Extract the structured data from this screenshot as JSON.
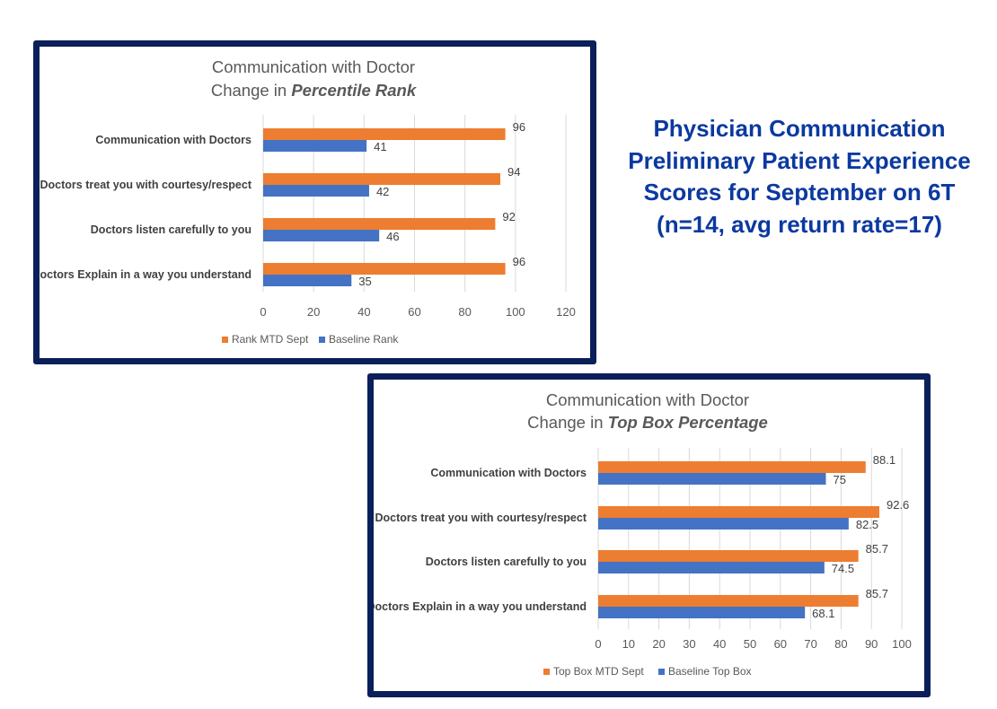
{
  "side_title": {
    "lines": [
      "Physician Communication",
      "Preliminary Patient Experience",
      "Scores for September on 6T",
      "(n=14, avg return rate=17)"
    ],
    "color": "#0b39a0"
  },
  "chart_data": [
    {
      "type": "bar",
      "orientation": "horizontal",
      "title_line1": "Communication with Doctor",
      "title_line2_prefix": "Change in ",
      "title_line2_emphasis": "Percentile Rank",
      "categories": [
        "Communication with Doctors",
        "Doctors treat you with courtesy/respect",
        "Doctors listen carefully to you",
        "Doctors Explain in a way you understand"
      ],
      "series": [
        {
          "name": "Rank MTD Sept",
          "color": "#ed7d31",
          "values": [
            96,
            94,
            92,
            96
          ]
        },
        {
          "name": "Baseline Rank",
          "color": "#4472c4",
          "values": [
            41,
            42,
            46,
            35
          ]
        }
      ],
      "xlim": [
        0,
        120
      ],
      "xticks": [
        0,
        20,
        40,
        60,
        80,
        100,
        120
      ],
      "grid": true,
      "legend": "bottom"
    },
    {
      "type": "bar",
      "orientation": "horizontal",
      "title_line1": "Communication with Doctor",
      "title_line2_prefix": "Change in ",
      "title_line2_emphasis": "Top Box Percentage",
      "categories": [
        "Communication with Doctors",
        "Doctors treat you with courtesy/respect",
        "Doctors listen carefully to you",
        "Doctors Explain in a way you understand"
      ],
      "series": [
        {
          "name": "Top Box MTD Sept",
          "color": "#ed7d31",
          "values": [
            88.1,
            92.6,
            85.7,
            85.7
          ]
        },
        {
          "name": "Baseline Top Box",
          "color": "#4472c4",
          "values": [
            75,
            82.5,
            74.5,
            68.1
          ]
        }
      ],
      "xlim": [
        0,
        100
      ],
      "xticks": [
        0,
        10,
        20,
        30,
        40,
        50,
        60,
        70,
        80,
        90,
        100
      ],
      "grid": true,
      "legend": "bottom"
    }
  ]
}
